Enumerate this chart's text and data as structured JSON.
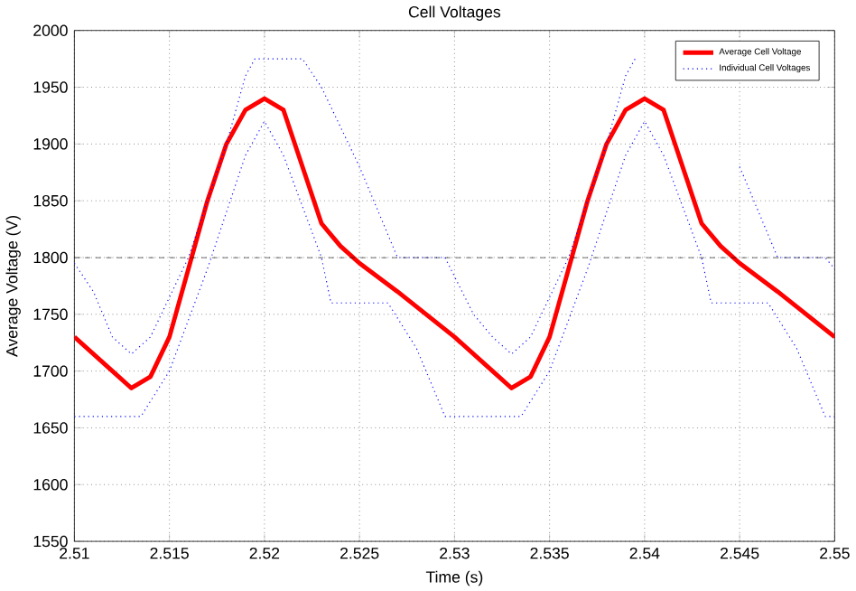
{
  "chart_data": {
    "type": "line",
    "title": "Cell Voltages",
    "xlabel": "Time (s)",
    "ylabel": "Average Voltage (V)",
    "xlim": [
      2.51,
      2.55
    ],
    "xticks": [
      2.51,
      2.515,
      2.52,
      2.525,
      2.53,
      2.535,
      2.54,
      2.545,
      2.55
    ],
    "ylim": [
      1550,
      2000
    ],
    "yticks": [
      1550,
      1600,
      1650,
      1700,
      1750,
      1800,
      1850,
      1900,
      1950,
      2000
    ],
    "grid": true,
    "legend": "top right",
    "ref_lines": [
      {
        "axis": "y",
        "value": 1800,
        "color": "#000000",
        "line_style": "dashed"
      }
    ],
    "series": [
      {
        "name": "Average Cell Voltage",
        "color": "#ff0000",
        "line_style": "solid",
        "x": [
          2.51,
          2.512,
          2.513,
          2.514,
          2.515,
          2.516,
          2.517,
          2.518,
          2.519,
          2.52,
          2.521,
          2.522,
          2.523,
          2.524,
          2.525,
          2.527,
          2.53,
          2.532,
          2.533,
          2.534,
          2.535,
          2.536,
          2.537,
          2.538,
          2.539,
          2.54,
          2.541,
          2.542,
          2.543,
          2.544,
          2.545,
          2.547,
          2.55
        ],
        "values": [
          1730,
          1700,
          1685,
          1695,
          1730,
          1790,
          1850,
          1900,
          1930,
          1940,
          1930,
          1880,
          1830,
          1810,
          1795,
          1770,
          1730,
          1700,
          1685,
          1695,
          1730,
          1790,
          1850,
          1900,
          1930,
          1940,
          1930,
          1880,
          1830,
          1810,
          1795,
          1770,
          1730
        ]
      },
      {
        "name": "Individual Cell Voltages",
        "color": "#0000ff",
        "line_style": "dotted",
        "x": [
          2.51,
          2.511,
          2.512,
          2.513,
          2.514,
          2.516,
          2.518,
          2.519,
          2.5195,
          2.522,
          2.523,
          2.525,
          2.526,
          2.527,
          2.5295,
          2.531,
          2.532,
          2.533,
          2.534,
          2.536,
          2.538,
          2.539,
          2.5395,
          2.542,
          2.543,
          2.545,
          2.546,
          2.547,
          2.5495,
          2.55
        ],
        "values": [
          1795,
          1770,
          1730,
          1715,
          1730,
          1800,
          1900,
          1960,
          1975,
          1975,
          1950,
          1880,
          1840,
          1800,
          1800,
          1750,
          1730,
          1715,
          1730,
          1800,
          1900,
          1960,
          1975,
          null,
          null,
          1880,
          1840,
          1800,
          1800,
          1790
        ]
      },
      {
        "color": "#0000ff",
        "line_style": "dotted",
        "x": [
          2.51,
          2.5135,
          2.515,
          2.517,
          2.519,
          2.52,
          2.521,
          2.523,
          2.5235,
          2.5265,
          2.528,
          2.5295,
          2.5335,
          2.535,
          2.537,
          2.539,
          2.54,
          2.541,
          2.543,
          2.5435,
          2.5465,
          2.548,
          2.5495,
          2.55
        ],
        "values": [
          1660,
          1660,
          1700,
          1790,
          1890,
          1920,
          1890,
          1800,
          1760,
          1760,
          1720,
          1660,
          1660,
          1700,
          1790,
          1890,
          1920,
          1890,
          1800,
          1760,
          1760,
          1720,
          1660,
          1660
        ]
      }
    ]
  }
}
